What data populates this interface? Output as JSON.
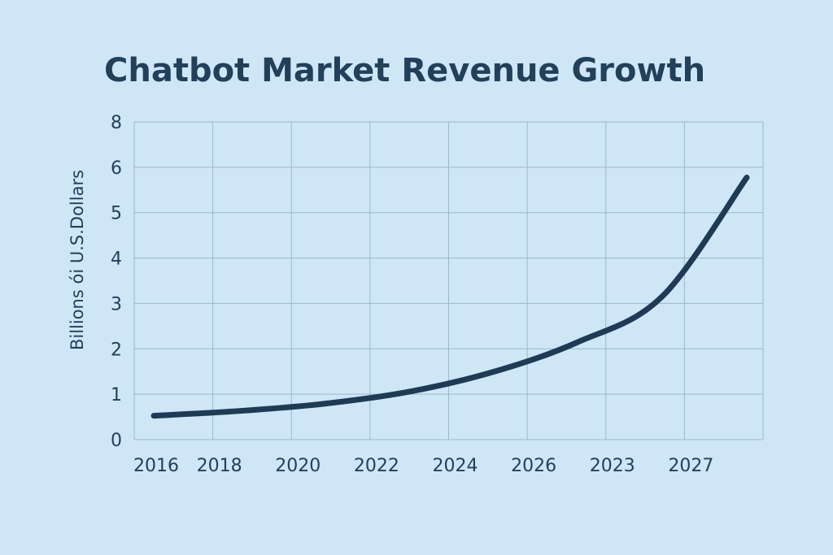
{
  "chart_data": {
    "type": "line",
    "title": "Chatbot Market Revenue Growth",
    "xlabel": "",
    "ylabel": "Billions ói U.S.Dollars",
    "categories": [
      "2016",
      "2018",
      "2020",
      "2022",
      "2024",
      "2026",
      "2023",
      "2027"
    ],
    "y_ticks": [
      "0",
      "1",
      "2",
      "3",
      "4",
      "5",
      "6",
      "8"
    ],
    "ylim": [
      0,
      8
    ],
    "grid": true,
    "series": [
      {
        "values": [
          0.6,
          0.72,
          0.9,
          1.2,
          1.7,
          2.45,
          3.6,
          6.6
        ],
        "color": "#1f3a55"
      }
    ]
  }
}
